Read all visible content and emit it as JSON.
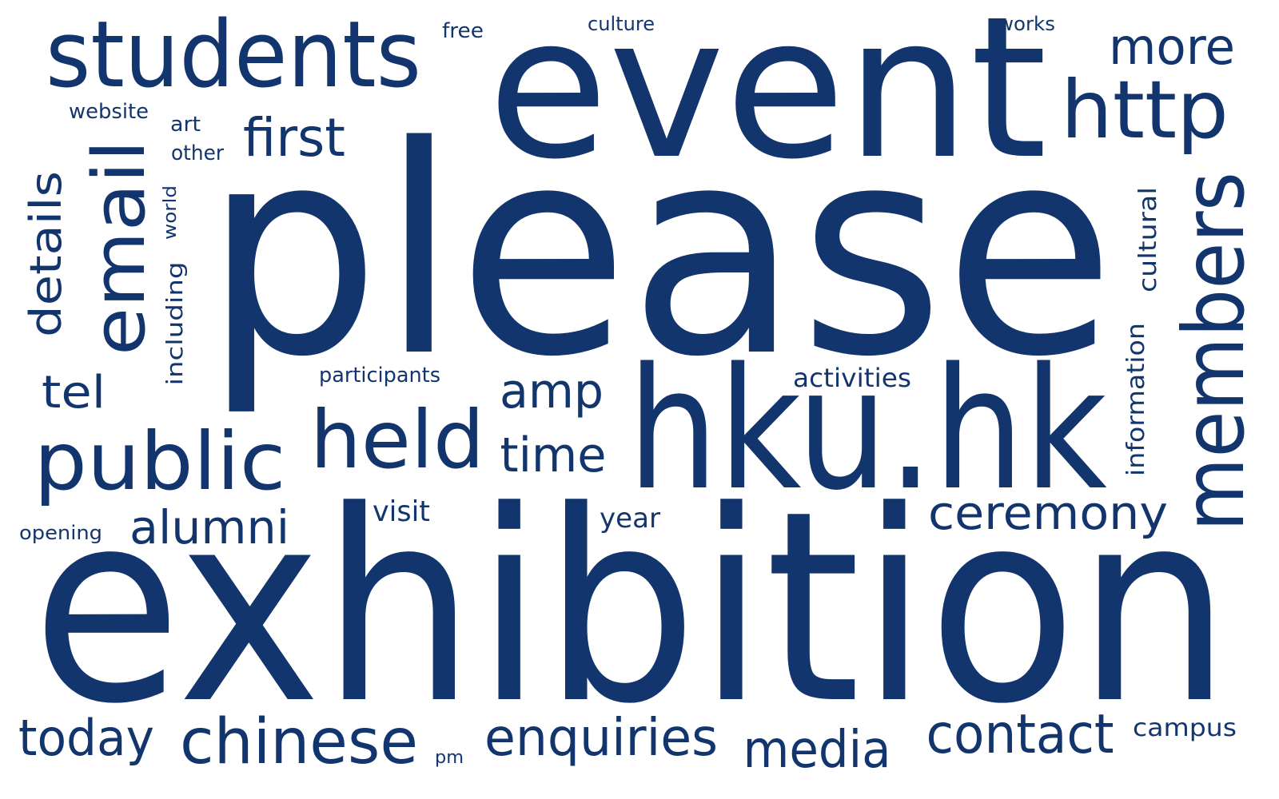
{
  "colors": {
    "word": "#13356e",
    "background": "#ffffff"
  },
  "words": [
    "please",
    "exhibition",
    "event",
    "hku.hk",
    "students",
    "members",
    "email",
    "http",
    "public",
    "held",
    "today",
    "chinese",
    "enquiries",
    "media",
    "contact",
    "details",
    "first",
    "more",
    "ceremony",
    "alumni",
    "amp",
    "time",
    "tel",
    "cultural",
    "information",
    "including",
    "website",
    "art",
    "other",
    "world",
    "participants",
    "activities",
    "visit",
    "opening",
    "year",
    "free",
    "culture",
    "works",
    "campus",
    "pm"
  ]
}
